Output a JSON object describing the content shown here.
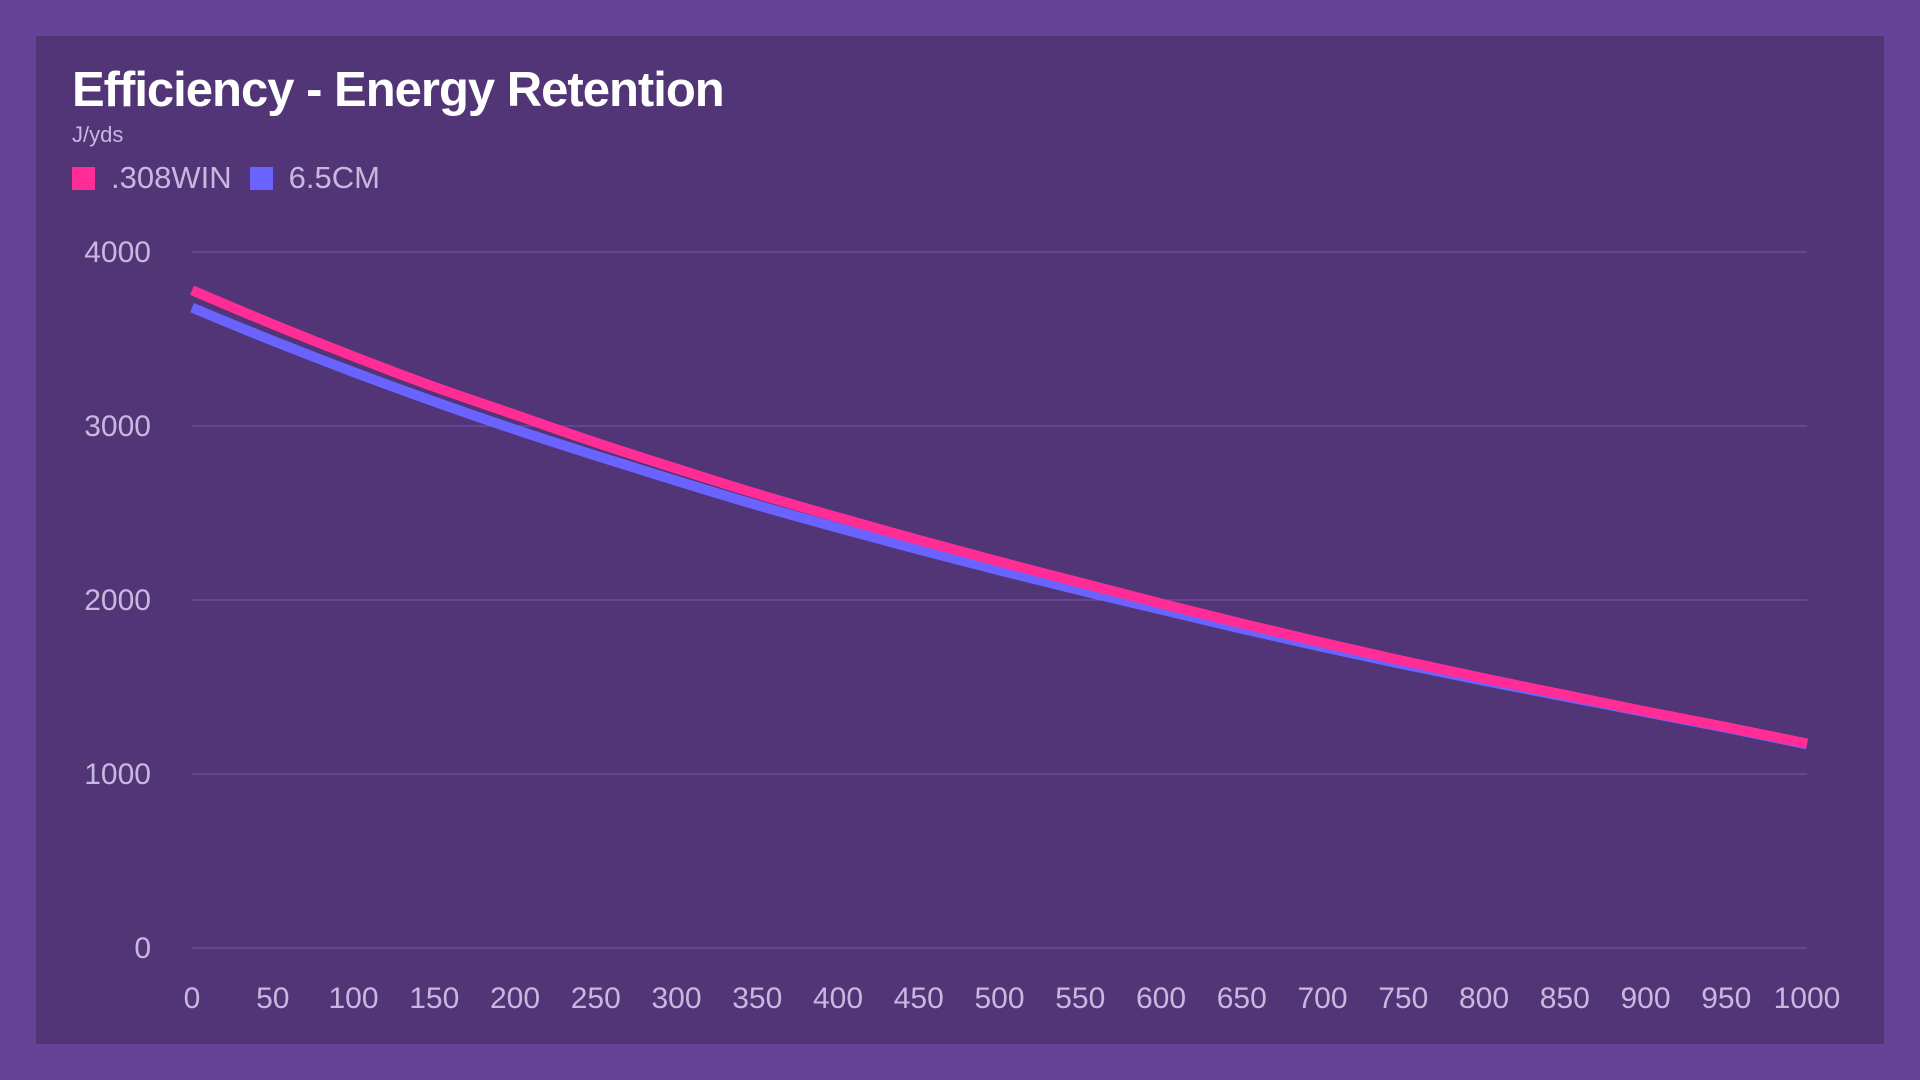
{
  "chart_data": {
    "type": "line",
    "title": "Efficiency - Energy Retention",
    "subtitle": "J/yds",
    "xlabel": "",
    "ylabel": "J/yds",
    "x": [
      0,
      50,
      100,
      150,
      200,
      250,
      300,
      350,
      400,
      450,
      500,
      550,
      600,
      650,
      700,
      750,
      800,
      850,
      900,
      950,
      1000
    ],
    "xticks": [
      "0",
      "50",
      "100",
      "150",
      "200",
      "250",
      "300",
      "350",
      "400",
      "450",
      "500",
      "550",
      "600",
      "650",
      "700",
      "750",
      "800",
      "850",
      "900",
      "950",
      "1000"
    ],
    "xlim": [
      0,
      1000
    ],
    "ylim": [
      0,
      4000
    ],
    "yticks": [
      "0",
      "1000",
      "2000",
      "3000",
      "4000"
    ],
    "grid": true,
    "legend_position": "top-left",
    "series": [
      {
        "name": ".308WIN",
        "color": "#ff2d95",
        "values": [
          3780,
          3585,
          3400,
          3225,
          3065,
          2905,
          2755,
          2610,
          2475,
          2345,
          2220,
          2100,
          1980,
          1865,
          1755,
          1650,
          1550,
          1455,
          1360,
          1270,
          1175
        ]
      },
      {
        "name": "6.5CM",
        "color": "#6a63ff",
        "values": [
          3680,
          3490,
          3310,
          3140,
          2980,
          2830,
          2685,
          2545,
          2415,
          2290,
          2170,
          2055,
          1945,
          1835,
          1730,
          1630,
          1535,
          1445,
          1355,
          1265,
          1170
        ]
      }
    ]
  },
  "colors": {
    "background": "#654296",
    "panel": "#513576",
    "gridline": "#6e4d9a",
    "text": "#c8b8e0",
    "title": "#ffffff"
  }
}
